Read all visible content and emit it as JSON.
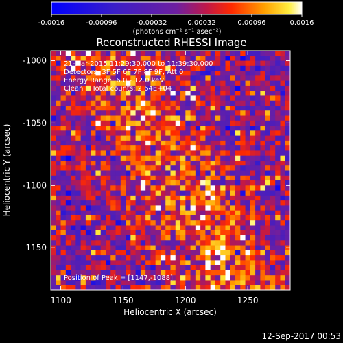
{
  "title": "Reconstructed RHESSI Image",
  "colorbar": {
    "ticks": [
      "-0.0016",
      "-0.00096",
      "-0.00032",
      "0.00032",
      "0.00096",
      "0.0016"
    ],
    "label": "(photons cm⁻² s⁻¹ asec⁻²)",
    "range": [
      -0.0016,
      0.0016
    ]
  },
  "annotations": {
    "line1": "21-Mar-2015 11:29:30.000 to 11:39:30.000",
    "line2": "Detectors: 3F 5F 6F 7F 8F 9F, Att 0",
    "line3": "Energy Range: 6.0 - 12.0 keV",
    "line4": "Clean    Total counts: 2.64E+04",
    "peak": "Position of Peak = [1147,-1088]"
  },
  "footer": "12-Sep-2017 00:53",
  "chart_data": {
    "type": "heatmap",
    "title": "Reconstructed RHESSI Image",
    "xlabel": "Heliocentric X (arcsec)",
    "ylabel": "Heliocentric Y (arcsec)",
    "xlim": [
      1092,
      1284
    ],
    "ylim": [
      -1184,
      -992
    ],
    "x_ticks": [
      "1100",
      "1150",
      "1200",
      "1250"
    ],
    "y_ticks": [
      "-1000",
      "-1050",
      "-1100",
      "-1150"
    ],
    "grid": "48x48 pixels, 4 arcsec each",
    "colormap": "blue-purple-red-yellow-white",
    "peak": [
      1147,
      -1088
    ]
  }
}
